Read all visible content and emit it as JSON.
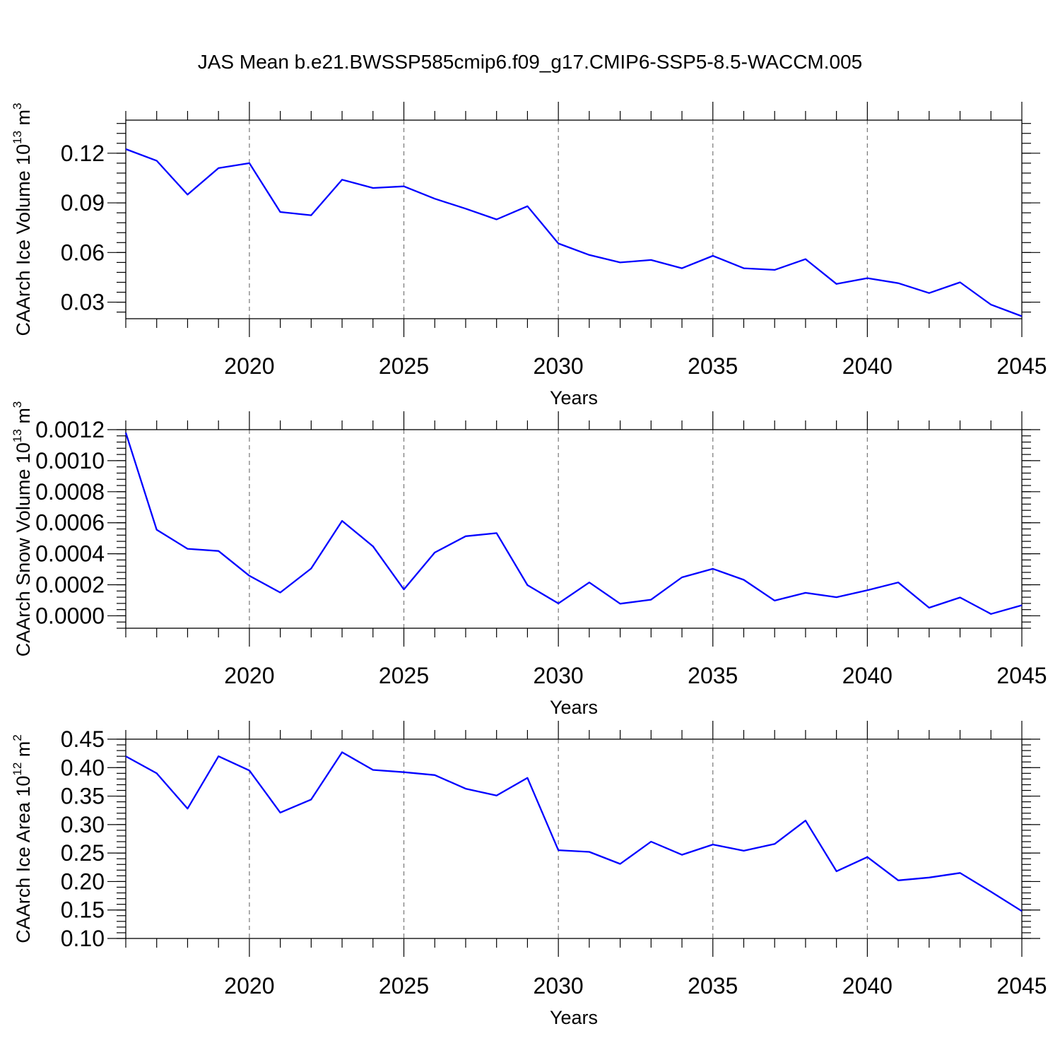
{
  "figure": {
    "title": "JAS Mean b.e21.BWSSP585cmip6.f09_g17.CMIP6-SSP5-8.5-WACCM.005"
  },
  "colors": {
    "series": "#0000ff",
    "frame": "#000000",
    "grid": "#777777"
  },
  "chart_data": [
    {
      "type": "line",
      "title": "",
      "xlabel": "Years",
      "ylabel": "CAArch Ice Volume 10",
      "ylabel_exp": "13",
      "ylabel_unit": " m",
      "ylabel_unit_exp": "3",
      "xlim": [
        2016,
        2045
      ],
      "ylim": [
        0.02,
        0.14
      ],
      "xticks": [
        2020,
        2025,
        2030,
        2035,
        2040,
        2045
      ],
      "yticks": [
        0.03,
        0.06,
        0.09,
        0.12
      ],
      "ytick_labels": [
        "0.03",
        "0.06",
        "0.09",
        "0.12"
      ],
      "y_minor_step": 0.006,
      "grid": "vertical dashed at major x ticks",
      "x": [
        2016,
        2017,
        2018,
        2019,
        2020,
        2021,
        2022,
        2023,
        2024,
        2025,
        2026,
        2027,
        2028,
        2029,
        2030,
        2031,
        2032,
        2033,
        2034,
        2035,
        2036,
        2037,
        2038,
        2039,
        2040,
        2041,
        2042,
        2043,
        2044,
        2045
      ],
      "values": [
        0.1225,
        0.1155,
        0.095,
        0.111,
        0.114,
        0.0845,
        0.0825,
        0.104,
        0.099,
        0.1,
        0.0925,
        0.0865,
        0.08,
        0.088,
        0.0655,
        0.0585,
        0.054,
        0.0555,
        0.0505,
        0.058,
        0.0505,
        0.0495,
        0.056,
        0.041,
        0.0445,
        0.0415,
        0.0355,
        0.042,
        0.0285,
        0.0215
      ]
    },
    {
      "type": "line",
      "title": "",
      "xlabel": "Years",
      "ylabel": "CAArch Snow Volume 10",
      "ylabel_exp": "13",
      "ylabel_unit": " m",
      "ylabel_unit_exp": "3",
      "xlim": [
        2016,
        2045
      ],
      "ylim": [
        -8e-05,
        0.0012
      ],
      "xticks": [
        2020,
        2025,
        2030,
        2035,
        2040,
        2045
      ],
      "yticks": [
        0.0,
        0.0002,
        0.0004,
        0.0006,
        0.0008,
        0.001,
        0.0012
      ],
      "ytick_labels": [
        "0.0000",
        "0.0002",
        "0.0004",
        "0.0006",
        "0.0008",
        "0.0010",
        "0.0012"
      ],
      "y_minor_step": 4e-05,
      "grid": "vertical dashed at major x ticks",
      "x": [
        2016,
        2017,
        2018,
        2019,
        2020,
        2021,
        2022,
        2023,
        2024,
        2025,
        2026,
        2027,
        2028,
        2029,
        2030,
        2031,
        2032,
        2033,
        2034,
        2035,
        2036,
        2037,
        2038,
        2039,
        2040,
        2041,
        2042,
        2043,
        2044,
        2045
      ],
      "values": [
        0.00118,
        0.000555,
        0.000432,
        0.000418,
        0.000258,
        0.00015,
        0.000305,
        0.000612,
        0.000448,
        0.00017,
        0.000408,
        0.000513,
        0.000533,
        0.000198,
        8e-05,
        0.000215,
        7.8e-05,
        0.000104,
        0.000248,
        0.000303,
        0.000232,
        9.8e-05,
        0.000148,
        0.00012,
        0.000165,
        0.000215,
        5.2e-05,
        0.000118,
        1.2e-05,
        6.8e-05
      ]
    },
    {
      "type": "line",
      "title": "",
      "xlabel": "Years",
      "ylabel": "CAArch Ice Area 10",
      "ylabel_exp": "12",
      "ylabel_unit": " m",
      "ylabel_unit_exp": "2",
      "xlim": [
        2016,
        2045
      ],
      "ylim": [
        0.1,
        0.45
      ],
      "xticks": [
        2020,
        2025,
        2030,
        2035,
        2040,
        2045
      ],
      "yticks": [
        0.1,
        0.15,
        0.2,
        0.25,
        0.3,
        0.35,
        0.4,
        0.45
      ],
      "ytick_labels": [
        "0.10",
        "0.15",
        "0.20",
        "0.25",
        "0.30",
        "0.35",
        "0.40",
        "0.45"
      ],
      "y_minor_step": 0.01,
      "grid": "vertical dashed at major x ticks",
      "x": [
        2016,
        2017,
        2018,
        2019,
        2020,
        2021,
        2022,
        2023,
        2024,
        2025,
        2026,
        2027,
        2028,
        2029,
        2030,
        2031,
        2032,
        2033,
        2034,
        2035,
        2036,
        2037,
        2038,
        2039,
        2040,
        2041,
        2042,
        2043,
        2044,
        2045
      ],
      "values": [
        0.42,
        0.39,
        0.328,
        0.42,
        0.395,
        0.321,
        0.344,
        0.427,
        0.396,
        0.392,
        0.387,
        0.363,
        0.351,
        0.382,
        0.255,
        0.252,
        0.231,
        0.27,
        0.247,
        0.265,
        0.254,
        0.266,
        0.307,
        0.218,
        0.243,
        0.202,
        0.207,
        0.215,
        0.182,
        0.148
      ]
    }
  ]
}
